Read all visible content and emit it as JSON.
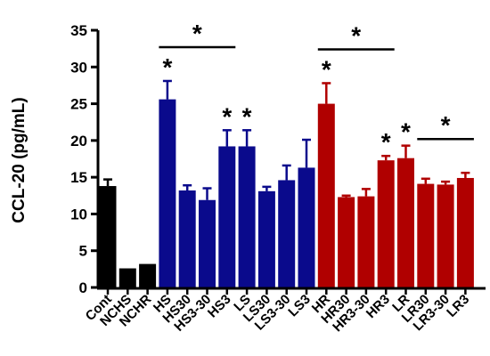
{
  "chart_data": {
    "type": "bar",
    "ylabel": "CCL-20 (pg/mL)",
    "ylim": [
      0,
      35
    ],
    "yticks": [
      0,
      5,
      10,
      15,
      20,
      25,
      30,
      35
    ],
    "categories": [
      "Cont",
      "NCHS",
      "NCHR",
      "HS",
      "HS30",
      "HS3-30",
      "HS3",
      "LS",
      "LS30",
      "LS3-30",
      "LS3",
      "HR",
      "HR30",
      "HR3-30",
      "HR3",
      "LR",
      "LR30",
      "LR3-30",
      "LR3"
    ],
    "values": [
      13.8,
      2.6,
      3.2,
      25.6,
      13.2,
      11.9,
      19.2,
      19.2,
      13.1,
      14.6,
      16.3,
      25.0,
      12.3,
      12.4,
      17.3,
      17.6,
      14.1,
      14.0,
      14.9
    ],
    "errors": [
      0.9,
      0.0,
      0.0,
      2.5,
      0.7,
      1.6,
      2.2,
      2.2,
      0.6,
      2.0,
      3.8,
      2.8,
      0.2,
      1.0,
      0.6,
      1.7,
      0.7,
      0.4,
      0.7
    ],
    "colors": [
      "#000000",
      "#000000",
      "#000000",
      "#0a0a8c",
      "#0a0a8c",
      "#0a0a8c",
      "#0a0a8c",
      "#0a0a8c",
      "#0a0a8c",
      "#0a0a8c",
      "#0a0a8c",
      "#b00000",
      "#b00000",
      "#b00000",
      "#b00000",
      "#b00000",
      "#b00000",
      "#b00000",
      "#b00000"
    ],
    "grid": false,
    "significance": {
      "marker": "*",
      "bar_stars": [
        3,
        6,
        7,
        11,
        14,
        15
      ],
      "brackets": [
        {
          "from": 3,
          "to": 6
        },
        {
          "from": 11,
          "to": 14
        },
        {
          "from": 16,
          "to": 18
        }
      ]
    }
  }
}
